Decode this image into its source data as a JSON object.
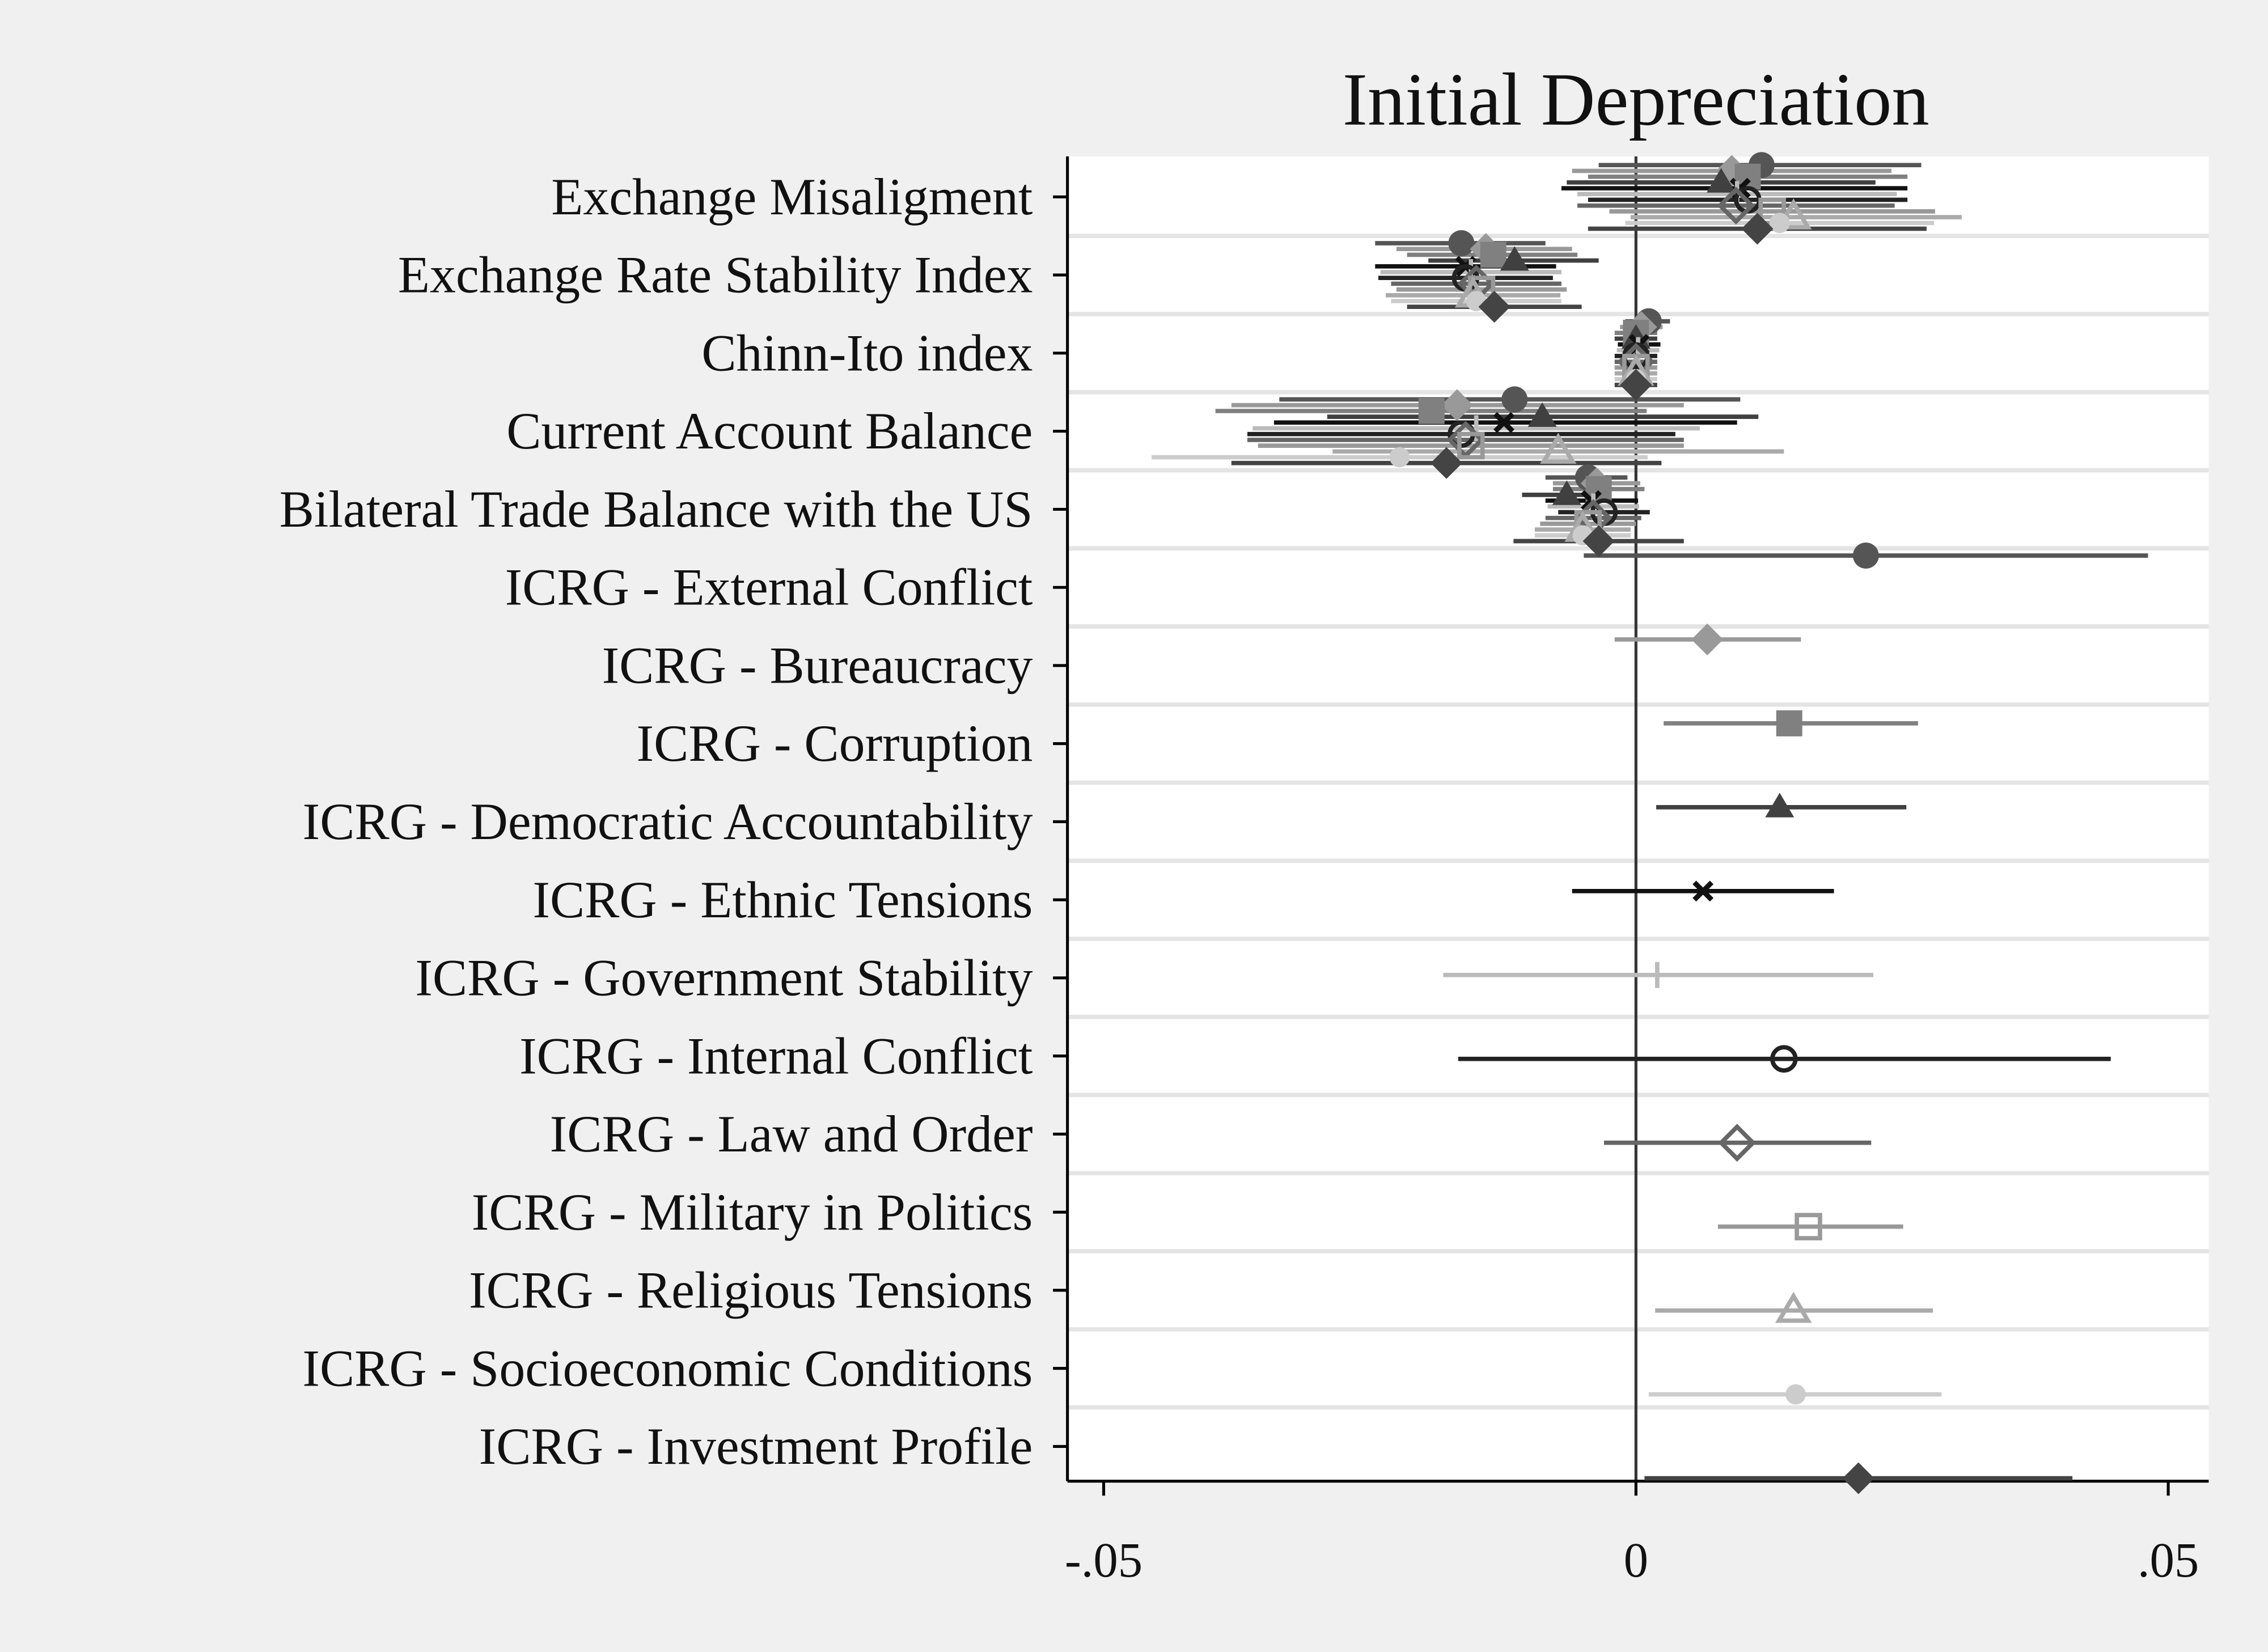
{
  "chart_data": {
    "type": "coefplot",
    "title": "Initial Depreciation",
    "categories": [
      "Exchange Misaligment",
      "Exchange Rate Stability Index",
      "Chinn-Ito index",
      "Current Account Balance",
      "Bilateral Trade Balance with the US",
      "ICRG - External Conflict",
      "ICRG - Bureaucracy",
      "ICRG - Corruption",
      "ICRG - Democratic Accountability",
      "ICRG - Ethnic Tensions",
      "ICRG - Government Stability",
      "ICRG - Internal Conflict",
      "ICRG - Law and Order",
      "ICRG - Military in Politics",
      "ICRG - Religious Tensions",
      "ICRG - Socioeconomic Conditions",
      "ICRG - Investment Profile"
    ],
    "xlim": [
      -0.0534,
      0.0538
    ],
    "xticks": [
      {
        "value": -0.05,
        "label": "-.05"
      },
      0,
      {
        "value": 0.05,
        "label": ".05"
      }
    ],
    "reference_line": 0,
    "grid": true,
    "series": [
      {
        "color": "#555555",
        "marker": "circle",
        "values": [
          0.0118,
          -0.0164,
          0.0012,
          -0.0114,
          -0.0045,
          0.0216,
          null,
          null,
          null,
          null,
          null,
          null,
          null,
          null,
          null,
          null,
          null
        ],
        "lower": [
          -0.0035,
          -0.0245,
          -0.001,
          -0.0335,
          -0.0085,
          -0.0049,
          null,
          null,
          null,
          null,
          null,
          null,
          null,
          null,
          null,
          null,
          null
        ],
        "upper": [
          0.0268,
          -0.0085,
          0.0032,
          0.0098,
          -0.0008,
          0.0481,
          null,
          null,
          null,
          null,
          null,
          null,
          null,
          null,
          null,
          null,
          null
        ]
      },
      {
        "color": "#999999",
        "marker": "diamond",
        "values": [
          0.009,
          -0.0141,
          0.0005,
          -0.0168,
          -0.0037,
          null,
          0.0067,
          null,
          null,
          null,
          null,
          null,
          null,
          null,
          null,
          null,
          null
        ],
        "lower": [
          -0.006,
          -0.0225,
          -0.0015,
          -0.038,
          -0.0078,
          null,
          -0.002,
          null,
          null,
          null,
          null,
          null,
          null,
          null,
          null,
          null,
          null
        ],
        "upper": [
          0.024,
          -0.006,
          0.0025,
          0.0045,
          0.0004,
          null,
          0.0155,
          null,
          null,
          null,
          null,
          null,
          null,
          null,
          null,
          null,
          null
        ]
      },
      {
        "color": "#808080",
        "marker": "square",
        "values": [
          0.0105,
          -0.0134,
          0,
          -0.0192,
          -0.0035,
          null,
          null,
          0.0144,
          null,
          null,
          null,
          null,
          null,
          null,
          null,
          null,
          null
        ],
        "lower": [
          -0.0045,
          -0.0215,
          -0.002,
          -0.0395,
          -0.0078,
          null,
          null,
          0.0026,
          null,
          null,
          null,
          null,
          null,
          null,
          null,
          null,
          null
        ],
        "upper": [
          0.0255,
          -0.0055,
          0.002,
          0.001,
          0.0008,
          null,
          null,
          0.0265,
          null,
          null,
          null,
          null,
          null,
          null,
          null,
          null,
          null
        ]
      },
      {
        "color": "#404040",
        "marker": "triangle",
        "values": [
          0.008,
          -0.0114,
          0,
          -0.0088,
          -0.0065,
          null,
          null,
          null,
          0.0135,
          null,
          null,
          null,
          null,
          null,
          null,
          null,
          null
        ],
        "lower": [
          -0.0065,
          -0.0195,
          -0.002,
          -0.029,
          -0.0107,
          null,
          null,
          null,
          0.0019,
          null,
          null,
          null,
          null,
          null,
          null,
          null,
          null
        ],
        "upper": [
          0.0225,
          -0.0035,
          0.002,
          0.0115,
          -0.0023,
          null,
          null,
          null,
          0.0254,
          null,
          null,
          null,
          null,
          null,
          null,
          null,
          null
        ]
      },
      {
        "color": "#111111",
        "marker": "x",
        "values": [
          0.0098,
          -0.016,
          0.0003,
          -0.0124,
          -0.0042,
          null,
          null,
          null,
          null,
          0.0063,
          null,
          null,
          null,
          null,
          null,
          null,
          null
        ],
        "lower": [
          -0.007,
          -0.0245,
          -0.0017,
          -0.034,
          -0.0085,
          null,
          null,
          null,
          null,
          -0.006,
          null,
          null,
          null,
          null,
          null,
          null,
          null
        ],
        "upper": [
          0.0255,
          -0.0075,
          0.0023,
          0.0095,
          0.0002,
          null,
          null,
          null,
          null,
          0.0186,
          null,
          null,
          null,
          null,
          null,
          null,
          null
        ]
      },
      {
        "color": "#bbbbbb",
        "marker": "plus",
        "values": [
          0.0095,
          -0.0155,
          0.0002,
          -0.015,
          -0.004,
          null,
          null,
          null,
          null,
          null,
          0.002,
          null,
          null,
          null,
          null,
          null,
          null
        ],
        "lower": [
          -0.0055,
          -0.024,
          -0.0018,
          -0.036,
          -0.0083,
          null,
          null,
          null,
          null,
          null,
          -0.0181,
          null,
          null,
          null,
          null,
          null,
          null
        ],
        "upper": [
          0.0245,
          -0.007,
          0.0022,
          0.006,
          0.0003,
          null,
          null,
          null,
          null,
          null,
          0.0223,
          null,
          null,
          null,
          null,
          null,
          null
        ]
      },
      {
        "color": "#222222",
        "marker": "circle-hollow",
        "values": [
          0.0105,
          -0.016,
          0,
          -0.0164,
          -0.003,
          null,
          null,
          null,
          null,
          null,
          null,
          0.0139,
          null,
          null,
          null,
          null,
          null
        ],
        "lower": [
          -0.0045,
          -0.0242,
          -0.002,
          -0.0365,
          -0.0073,
          null,
          null,
          null,
          null,
          null,
          null,
          -0.0167,
          null,
          null,
          null,
          null,
          null
        ],
        "upper": [
          0.0255,
          -0.0078,
          0.002,
          0.0037,
          0.0013,
          null,
          null,
          null,
          null,
          null,
          null,
          0.0446,
          null,
          null,
          null,
          null,
          null
        ]
      },
      {
        "color": "#666666",
        "marker": "diamond-hollow",
        "values": [
          0.0094,
          -0.015,
          0,
          -0.016,
          -0.004,
          null,
          null,
          null,
          null,
          null,
          null,
          null,
          0.0095,
          null,
          null,
          null,
          null
        ],
        "lower": [
          -0.0055,
          -0.023,
          -0.002,
          -0.0365,
          -0.0085,
          null,
          null,
          null,
          null,
          null,
          null,
          null,
          -0.003,
          null,
          null,
          null,
          null
        ],
        "upper": [
          0.0243,
          -0.007,
          0.002,
          0.0045,
          0.0005,
          null,
          null,
          null,
          null,
          null,
          null,
          null,
          0.0221,
          null,
          null,
          null,
          null
        ]
      },
      {
        "color": "#999999",
        "marker": "square-hollow",
        "values": [
          0.0128,
          -0.0145,
          0,
          -0.0155,
          -0.0045,
          null,
          null,
          null,
          null,
          null,
          null,
          null,
          null,
          0.0162,
          null,
          null,
          null
        ],
        "lower": [
          -0.0025,
          -0.0225,
          -0.002,
          -0.0355,
          -0.009,
          null,
          null,
          null,
          null,
          null,
          null,
          null,
          null,
          0.0077,
          null,
          null,
          null
        ],
        "upper": [
          0.0281,
          -0.0065,
          0.002,
          0.0045,
          0,
          null,
          null,
          null,
          null,
          null,
          null,
          null,
          null,
          0.0251,
          null,
          null,
          null
        ]
      },
      {
        "color": "#aaaaaa",
        "marker": "triangle-hollow",
        "values": [
          0.0148,
          -0.0153,
          0,
          -0.0073,
          -0.005,
          null,
          null,
          null,
          null,
          null,
          null,
          null,
          null,
          null,
          0.0148,
          null,
          null
        ],
        "lower": [
          -0.0005,
          -0.0235,
          -0.002,
          -0.0285,
          -0.0095,
          null,
          null,
          null,
          null,
          null,
          null,
          null,
          null,
          null,
          0.0018,
          null,
          null
        ],
        "upper": [
          0.0306,
          -0.0071,
          0.002,
          0.0139,
          -0.0005,
          null,
          null,
          null,
          null,
          null,
          null,
          null,
          null,
          null,
          0.0279,
          null,
          null
        ]
      },
      {
        "color": "#cccccc",
        "marker": "circle-small",
        "values": [
          0.0135,
          -0.015,
          0,
          -0.0222,
          -0.005,
          null,
          null,
          null,
          null,
          null,
          null,
          null,
          null,
          null,
          null,
          0.015,
          null
        ],
        "lower": [
          -0.001,
          -0.023,
          -0.002,
          -0.0455,
          -0.0095,
          null,
          null,
          null,
          null,
          null,
          null,
          null,
          null,
          null,
          null,
          0.0012,
          null
        ],
        "upper": [
          0.028,
          -0.007,
          0.002,
          0.0011,
          -0.0005,
          null,
          null,
          null,
          null,
          null,
          null,
          null,
          null,
          null,
          null,
          0.0287,
          null
        ]
      },
      {
        "color": "#444444",
        "marker": "diamond",
        "values": [
          0.0114,
          -0.0133,
          0,
          -0.0178,
          -0.0035,
          null,
          null,
          null,
          null,
          null,
          null,
          null,
          null,
          null,
          null,
          null,
          0.0209
        ],
        "lower": [
          -0.0045,
          -0.0215,
          -0.002,
          -0.038,
          -0.0115,
          null,
          null,
          null,
          null,
          null,
          null,
          null,
          null,
          null,
          null,
          null,
          0.0008
        ],
        "upper": [
          0.0273,
          -0.0051,
          0.002,
          0.0024,
          0.0045,
          null,
          null,
          null,
          null,
          null,
          null,
          null,
          null,
          null,
          null,
          null,
          0.041
        ]
      }
    ]
  }
}
